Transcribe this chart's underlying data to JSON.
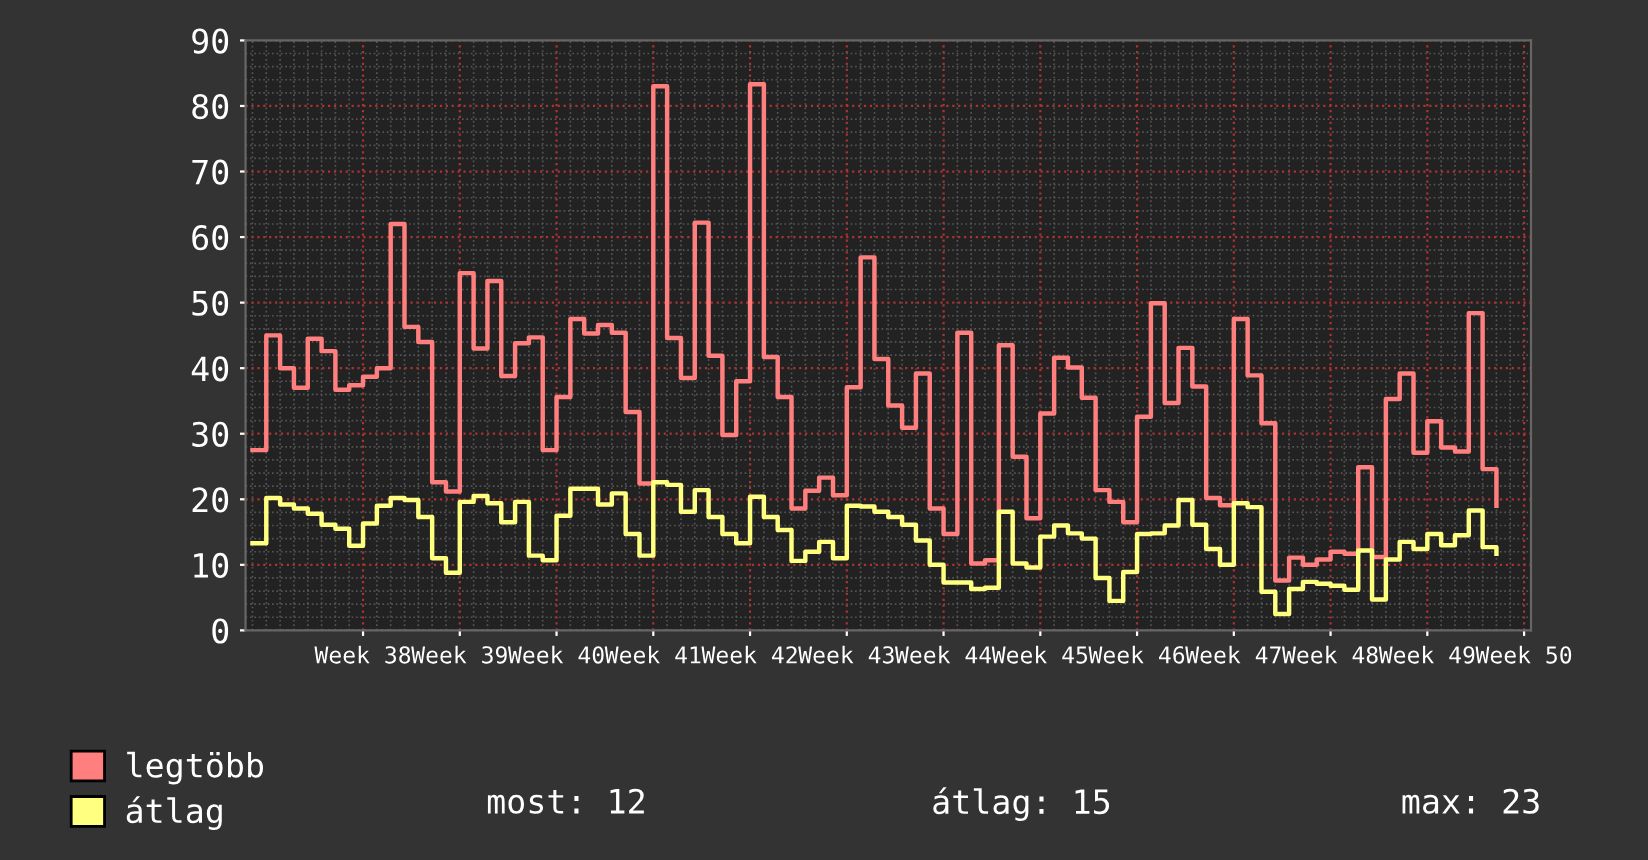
{
  "chart_data": {
    "type": "step",
    "categories": [
      null,
      null,
      null,
      null,
      null,
      null,
      null,
      null,
      "Week 38",
      null,
      null,
      null,
      null,
      null,
      null,
      "Week 39",
      null,
      null,
      null,
      null,
      null,
      null,
      "Week 40",
      null,
      null,
      null,
      null,
      null,
      null,
      "Week 41",
      null,
      null,
      null,
      null,
      null,
      null,
      "Week 42",
      null,
      null,
      null,
      null,
      null,
      null,
      "Week 43",
      null,
      null,
      null,
      null,
      null,
      null,
      "Week 44",
      null,
      null,
      null,
      null,
      null,
      null,
      "Week 45",
      null,
      null,
      null,
      null,
      null,
      null,
      "Week 46",
      null,
      null,
      null,
      null,
      null,
      null,
      "Week 47",
      null,
      null,
      null,
      null,
      null,
      null,
      "Week 48",
      null,
      null,
      null,
      null,
      null,
      null,
      "Week 49",
      null,
      null,
      null,
      null,
      null,
      null,
      "Week 50"
    ],
    "series": [
      {
        "name": "legtöbb",
        "color": "#ff7f7f",
        "values": [
          27.5,
          45,
          40,
          37,
          44.5,
          42.6,
          36.7,
          37.4,
          38.7,
          40,
          62,
          46.3,
          44,
          22.6,
          21.2,
          54.5,
          43,
          53.3,
          38.8,
          43.8,
          44.7,
          27.5,
          35.6,
          47.5,
          45.3,
          46.6,
          45.4,
          33.3,
          22.4,
          83,
          44.6,
          38.5,
          62.2,
          41.9,
          29.8,
          38,
          83.3,
          41.7,
          35.6,
          18.6,
          21.3,
          23.3,
          20.6,
          37.1,
          56.9,
          41.4,
          34.3,
          30.9,
          39.2,
          18.6,
          14.7,
          45.4,
          10.2,
          10.7,
          43.5,
          26.5,
          17.1,
          33.1,
          41.6,
          40.1,
          35.5,
          21.4,
          19.6,
          16.5,
          32.6,
          49.9,
          34.7,
          43.1,
          37.2,
          20.2,
          19.1,
          47.5,
          38.9,
          31.6,
          7.6,
          11.1,
          10,
          10.8,
          12,
          11.7,
          24.9,
          11.2,
          35.3,
          39.2,
          27.1,
          31.9,
          27.9,
          27.3,
          48.4,
          24.6,
          19,
          null,
          null
        ]
      },
      {
        "name": "átlag",
        "color": "#ffff80",
        "values": [
          13.3,
          20.2,
          19.2,
          18.6,
          17.8,
          16.1,
          15.5,
          12.9,
          16.3,
          19,
          20.2,
          19.9,
          17.3,
          11,
          8.8,
          19.6,
          20.5,
          19.4,
          16.5,
          19.6,
          11.4,
          10.7,
          17.5,
          21.6,
          21.6,
          19.2,
          20.9,
          14.7,
          11.4,
          22.6,
          22.2,
          18.1,
          21.4,
          17.3,
          14.7,
          13.3,
          20.4,
          17.3,
          15.3,
          10.6,
          12,
          13.5,
          11,
          19,
          18.9,
          18.1,
          17.3,
          16.1,
          13.7,
          10,
          7.3,
          7.3,
          6.3,
          6.5,
          18.1,
          10.2,
          9.6,
          14.3,
          16,
          14.8,
          14,
          8,
          4.5,
          8.9,
          14.7,
          14.8,
          16,
          19.9,
          16.1,
          12.4,
          10,
          19.4,
          18.8,
          5.9,
          2.5,
          6.3,
          7.4,
          7.1,
          6.8,
          6.2,
          12.2,
          4.7,
          10.8,
          13.5,
          12.4,
          14.7,
          13,
          14.5,
          18.3,
          12.7,
          11.7,
          null,
          null
        ]
      }
    ],
    "ylim": [
      0,
      90
    ],
    "yticks": [
      0,
      10,
      20,
      30,
      40,
      50,
      60,
      70,
      80,
      90
    ],
    "grid": true,
    "legend": "bottom",
    "annotations": [
      "most: 12",
      "átlag: 15",
      "max: 23"
    ]
  }
}
